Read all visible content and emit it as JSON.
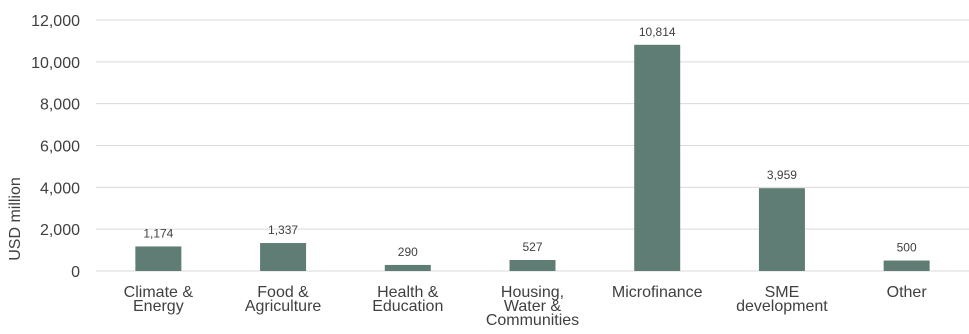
{
  "chart_data": {
    "type": "bar",
    "categories": [
      [
        "Climate &",
        "Energy"
      ],
      [
        "Food &",
        "Agriculture"
      ],
      [
        "Health &",
        "Education"
      ],
      [
        "Housing,",
        "Water &",
        "Communities"
      ],
      [
        "Microfinance"
      ],
      [
        "SME",
        "development"
      ],
      [
        "Other"
      ]
    ],
    "values": [
      1174,
      1337,
      290,
      527,
      10814,
      3959,
      500
    ],
    "value_labels": [
      "1,174",
      "1,337",
      "290",
      "527",
      "10,814",
      "3,959",
      "500"
    ],
    "ylabel": "USD million",
    "ylim": [
      0,
      12000
    ],
    "yticks": [
      0,
      2000,
      4000,
      6000,
      8000,
      10000,
      12000
    ],
    "ytick_labels": [
      "0",
      "2,000",
      "4,000",
      "6,000",
      "8,000",
      "10,000",
      "12,000"
    ],
    "grid": true,
    "bar_color": "#5f7d74",
    "grid_color": "#d9d9d9"
  }
}
